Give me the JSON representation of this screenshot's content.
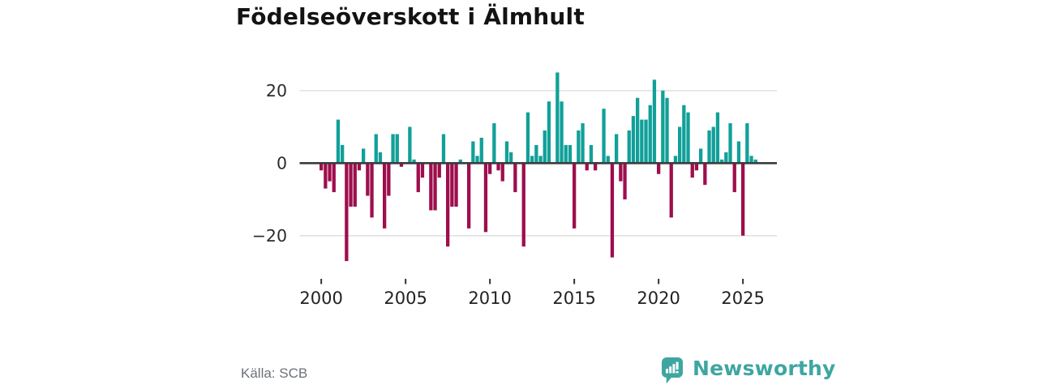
{
  "title": "Födelseöverskott i Älmhult",
  "source": "Källa: SCB",
  "brand": {
    "name": "Newsworthy"
  },
  "colors": {
    "positive": "#11a099",
    "negative": "#9e0e4d",
    "grid": "#e2e2e2",
    "zero_line": "#3c3c3c",
    "tick": "#333333",
    "axis_text": "#2b2b2b",
    "muted_text": "#6d727a",
    "brand_teal": "#3ea6a1"
  },
  "icons": [
    {
      "name": "newsworthy-logo-icon",
      "description": "teal speech-bubble with white mini bar chart and exclamation mark"
    }
  ],
  "chart_data": {
    "type": "bar",
    "title": "Födelseöverskott i Älmhult",
    "xlabel": "",
    "ylabel": "",
    "grid": "horizontal",
    "legend": "none",
    "ylim": [
      -30,
      27
    ],
    "y_ticks": [
      20,
      0,
      -20
    ],
    "y_tick_labels": [
      "20",
      "0",
      "−20"
    ],
    "x_tick_labels": [
      "2000",
      "2005",
      "2010",
      "2015",
      "2020",
      "2025"
    ],
    "x_tick_positions": [
      0,
      20,
      40,
      60,
      80,
      100
    ],
    "x": [
      "2000 Q1",
      "2000 Q2",
      "2000 Q3",
      "2000 Q4",
      "2001 Q1",
      "2001 Q2",
      "2001 Q3",
      "2001 Q4",
      "2002 Q1",
      "2002 Q2",
      "2002 Q3",
      "2002 Q4",
      "2003 Q1",
      "2003 Q2",
      "2003 Q3",
      "2003 Q4",
      "2004 Q1",
      "2004 Q2",
      "2004 Q3",
      "2004 Q4",
      "2005 Q1",
      "2005 Q2",
      "2005 Q3",
      "2005 Q4",
      "2006 Q1",
      "2006 Q2",
      "2006 Q3",
      "2006 Q4",
      "2007 Q1",
      "2007 Q2",
      "2007 Q3",
      "2007 Q4",
      "2008 Q1",
      "2008 Q2",
      "2008 Q3",
      "2008 Q4",
      "2009 Q1",
      "2009 Q2",
      "2009 Q3",
      "2009 Q4",
      "2010 Q1",
      "2010 Q2",
      "2010 Q3",
      "2010 Q4",
      "2011 Q1",
      "2011 Q2",
      "2011 Q3",
      "2011 Q4",
      "2012 Q1",
      "2012 Q2",
      "2012 Q3",
      "2012 Q4",
      "2013 Q1",
      "2013 Q2",
      "2013 Q3",
      "2013 Q4",
      "2014 Q1",
      "2014 Q2",
      "2014 Q3",
      "2014 Q4",
      "2015 Q1",
      "2015 Q2",
      "2015 Q3",
      "2015 Q4",
      "2016 Q1",
      "2016 Q2",
      "2016 Q3",
      "2016 Q4",
      "2017 Q1",
      "2017 Q2",
      "2017 Q3",
      "2017 Q4",
      "2018 Q1",
      "2018 Q2",
      "2018 Q3",
      "2018 Q4",
      "2019 Q1",
      "2019 Q2",
      "2019 Q3",
      "2019 Q4",
      "2020 Q1",
      "2020 Q2",
      "2020 Q3",
      "2020 Q4",
      "2021 Q1",
      "2021 Q2",
      "2021 Q3",
      "2021 Q4",
      "2022 Q1",
      "2022 Q2",
      "2022 Q3",
      "2022 Q4",
      "2023 Q1",
      "2023 Q2",
      "2023 Q3",
      "2023 Q4",
      "2024 Q1",
      "2024 Q2",
      "2024 Q3",
      "2024 Q4",
      "2025 Q1",
      "2025 Q2",
      "2025 Q3",
      "2025 Q4"
    ],
    "values": [
      -2,
      -7,
      -5,
      -8,
      12,
      5,
      -27,
      -12,
      -12,
      -2,
      4,
      -9,
      -15,
      8,
      3,
      -18,
      -9,
      8,
      8,
      -1,
      0,
      10,
      1,
      -8,
      -4,
      0,
      -13,
      -13,
      -4,
      8,
      -23,
      -12,
      -12,
      1,
      0,
      -18,
      6,
      2,
      7,
      -19,
      -3,
      11,
      -2,
      -5,
      6,
      3,
      -8,
      0,
      -23,
      14,
      2,
      5,
      2,
      9,
      17,
      0,
      25,
      17,
      5,
      5,
      -18,
      9,
      11,
      -2,
      5,
      -2,
      0,
      15,
      2,
      -26,
      8,
      -5,
      -10,
      9,
      13,
      18,
      12,
      12,
      16,
      23,
      -3,
      20,
      18,
      -15,
      2,
      10,
      16,
      14,
      -4,
      -2,
      4,
      -6,
      9,
      10,
      14,
      1,
      3,
      11,
      -8,
      6,
      -20,
      11,
      2,
      1
    ]
  }
}
